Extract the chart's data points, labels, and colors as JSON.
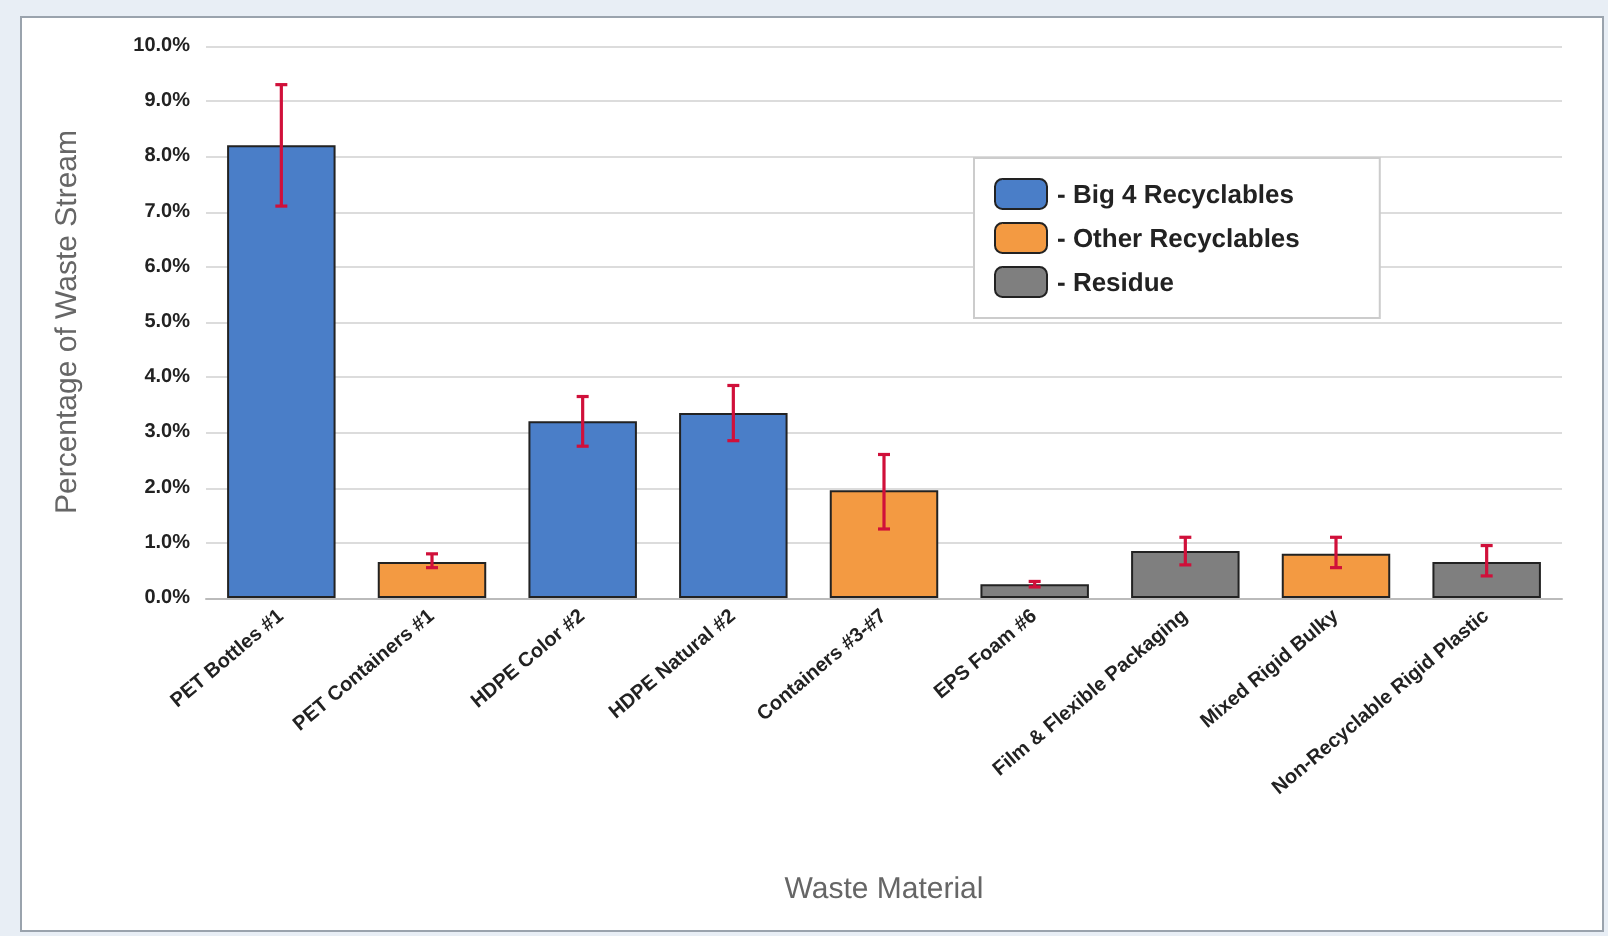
{
  "chart_data": {
    "type": "bar",
    "xlabel": "Waste Material",
    "ylabel": "Percentage of Waste Stream",
    "categories": [
      "PET Bottles #1",
      "PET Containers #1",
      "HDPE Color #2",
      "HDPE Natural #2",
      "Containers #3-#7",
      "EPS Foam #6",
      "Film & Flexible Packaging",
      "Mixed Rigid Bulky",
      "Non-Recyclable Rigid Plastic"
    ],
    "series": [
      {
        "name": "- Big 4 Recyclables",
        "color": "#4a7ec8",
        "values": [
          8.2,
          null,
          3.2,
          3.35,
          null,
          null,
          null,
          null,
          null
        ],
        "errors": [
          [
            7.1,
            9.3
          ],
          null,
          [
            2.75,
            3.65
          ],
          [
            2.85,
            3.85
          ],
          null,
          null,
          null,
          null,
          null
        ]
      },
      {
        "name": "- Other Recyclables",
        "color": "#f39a42",
        "values": [
          null,
          0.65,
          null,
          null,
          1.95,
          null,
          null,
          0.8,
          null
        ],
        "errors": [
          null,
          [
            0.55,
            0.8
          ],
          null,
          null,
          [
            1.25,
            2.6
          ],
          null,
          null,
          [
            0.55,
            1.1
          ],
          null
        ]
      },
      {
        "name": "- Residue",
        "color": "#7f7f7f",
        "values": [
          null,
          null,
          null,
          null,
          null,
          0.25,
          0.85,
          null,
          0.65
        ],
        "errors": [
          null,
          null,
          null,
          null,
          null,
          [
            0.2,
            0.3
          ],
          [
            0.6,
            1.1
          ],
          null,
          [
            0.4,
            0.95
          ]
        ]
      }
    ],
    "ylim": [
      0,
      10
    ],
    "yticks": [
      {
        "value": 0,
        "label": "0.0%"
      },
      {
        "value": 1,
        "label": "1.0%"
      },
      {
        "value": 2,
        "label": "2.0%"
      },
      {
        "value": 3,
        "label": "3.0%"
      },
      {
        "value": 4,
        "label": "4.0%"
      },
      {
        "value": 5,
        "label": "5.0%"
      },
      {
        "value": 6,
        "label": "6.0%"
      },
      {
        "value": 7,
        "label": "7.0%"
      },
      {
        "value": 8,
        "label": "8.0%"
      },
      {
        "value": 9,
        "label": "9.0%"
      },
      {
        "value": 10,
        "label": "10.0%"
      }
    ],
    "grid": "y",
    "legend": "top right"
  }
}
